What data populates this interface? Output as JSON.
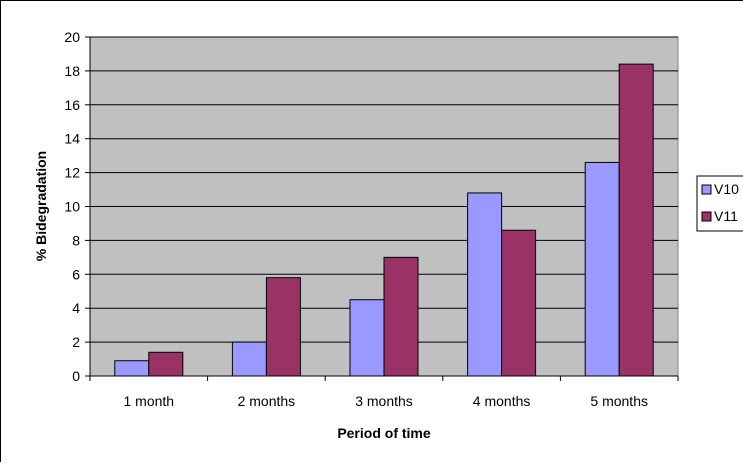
{
  "chart_data": {
    "type": "bar",
    "title": "",
    "xlabel": "Period of time",
    "ylabel": "% Bidegradation",
    "categories": [
      "1 month",
      "2 months",
      "3 months",
      "4 months",
      "5 months"
    ],
    "ylim": [
      0,
      20
    ],
    "yticks": [
      "0",
      "2",
      "4",
      "6",
      "8",
      "10",
      "12",
      "14",
      "16",
      "18",
      "20"
    ],
    "grid": "horizontal",
    "legend_position": "right",
    "plot_background": "#c0c0c0",
    "series": [
      {
        "name": "V10",
        "color": "#9999ff",
        "values": [
          0.9,
          2.0,
          4.5,
          10.8,
          12.6
        ]
      },
      {
        "name": "V11",
        "color": "#993366",
        "values": [
          1.4,
          5.8,
          7.0,
          8.6,
          18.4
        ]
      }
    ]
  }
}
